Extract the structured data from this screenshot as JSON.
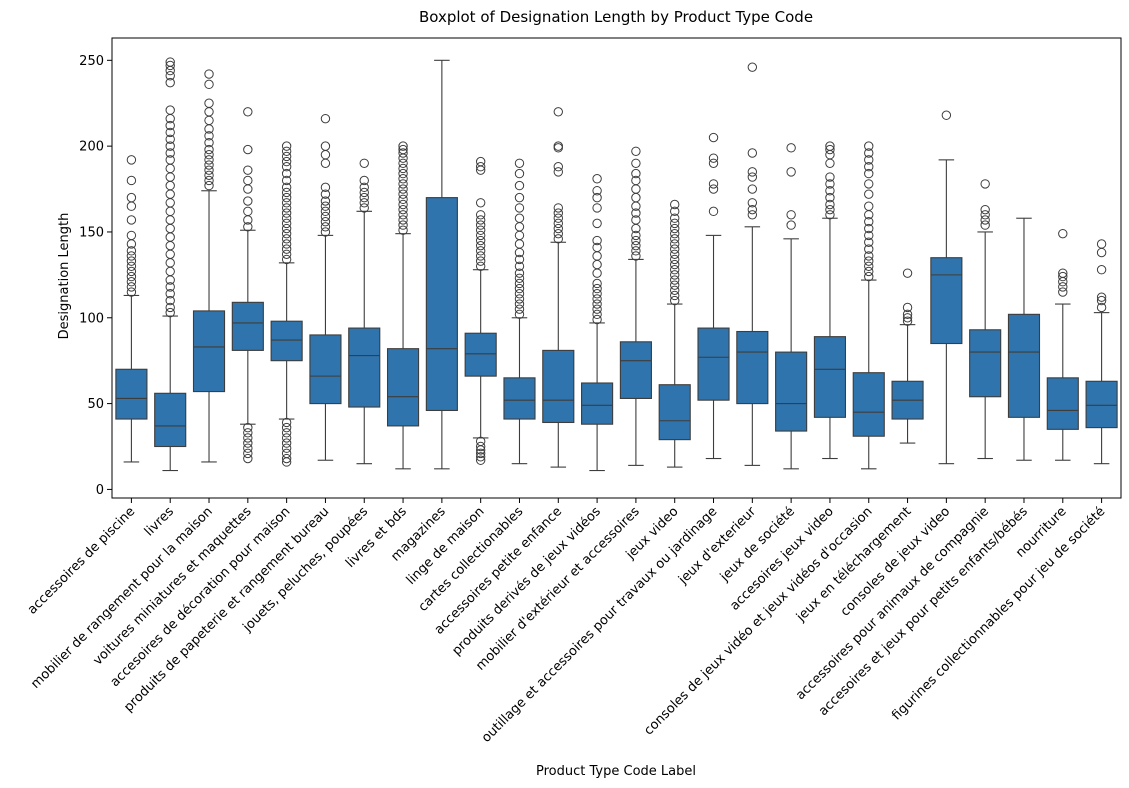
{
  "chart_data": {
    "type": "boxplot",
    "title": "Boxplot of Designation Length by Product Type Code",
    "xlabel": "Product Type Code Label",
    "ylabel": "Designation Length",
    "ylim": [
      -5,
      263
    ],
    "yticks": [
      0,
      50,
      100,
      150,
      200,
      250
    ],
    "grid": false,
    "box_color": "#2f74ad",
    "line_color": "#3d3d3d",
    "categories": [
      "accessoires de piscine",
      "livres",
      "mobilier de rangement pour la maison",
      "voitures miniatures et maquettes",
      "accesoires de décoration pour maison",
      "produits de papeterie et rangement bureau",
      "jouets, peluches, poupées",
      "livres et bds",
      "magazines",
      "linge de maison",
      "cartes collectionables",
      "accessoires petite enfance",
      "produits derivés de jeux vidéos",
      "mobilier d'extérieur et accessoires",
      "jeux video",
      "outillage et accessoires pour travaux ou jardinage",
      "jeux d'exterieur",
      "jeux de société",
      "accesoires jeux video",
      "consoles de jeux vidéo et jeux vidéos d'occasion",
      "jeux en téléchargement",
      "consoles de jeux video",
      "accessoires pour animaux de compagnie",
      "accesoires et jeux pour petits enfants/bébés",
      "nourriture",
      "figurines collectionnables pour jeu de société"
    ],
    "boxes": [
      {
        "whislo": 16,
        "q1": 41,
        "med": 53,
        "q3": 70,
        "whishi": 113,
        "fliers_high": [
          115,
          118,
          121,
          124,
          127,
          130,
          133,
          136,
          139,
          143,
          148,
          157,
          165,
          170,
          180,
          192
        ],
        "fliers_low": []
      },
      {
        "whislo": 11,
        "q1": 25,
        "med": 37,
        "q3": 56,
        "whishi": 101,
        "fliers_high": [
          103,
          106,
          110,
          114,
          118,
          122,
          127,
          132,
          137,
          142,
          147,
          152,
          157,
          162,
          167,
          172,
          177,
          182,
          187,
          192,
          196,
          200,
          204,
          208,
          212,
          216,
          221,
          237,
          241,
          244,
          247,
          249
        ],
        "fliers_low": []
      },
      {
        "whislo": 16,
        "q1": 57,
        "med": 83,
        "q3": 104,
        "whishi": 174,
        "fliers_high": [
          177,
          180,
          183,
          186,
          189,
          192,
          195,
          198,
          202,
          206,
          210,
          215,
          220,
          225,
          236,
          242
        ],
        "fliers_low": []
      },
      {
        "whislo": 38,
        "q1": 81,
        "med": 97,
        "q3": 109,
        "whishi": 151,
        "fliers_high": [
          153,
          157,
          162,
          168,
          175,
          180,
          186,
          198,
          220
        ],
        "fliers_low": [
          36,
          33,
          30,
          27,
          24,
          21,
          18
        ]
      },
      {
        "whislo": 41,
        "q1": 75,
        "med": 87,
        "q3": 98,
        "whishi": 132,
        "fliers_high": [
          134,
          137,
          140,
          143,
          146,
          149,
          152,
          155,
          158,
          161,
          164,
          167,
          170,
          173,
          176,
          180,
          184,
          188,
          191,
          194,
          197,
          200
        ],
        "fliers_low": [
          39,
          36,
          33,
          30,
          27,
          24,
          21,
          18,
          16
        ]
      },
      {
        "whislo": 17,
        "q1": 50,
        "med": 66,
        "q3": 90,
        "whishi": 148,
        "fliers_high": [
          150,
          153,
          156,
          159,
          162,
          165,
          168,
          172,
          176,
          190,
          195,
          200,
          216
        ],
        "fliers_low": []
      },
      {
        "whislo": 15,
        "q1": 48,
        "med": 78,
        "q3": 94,
        "whishi": 162,
        "fliers_high": [
          164,
          167,
          170,
          173,
          176,
          180,
          190
        ],
        "fliers_low": []
      },
      {
        "whislo": 12,
        "q1": 37,
        "med": 54,
        "q3": 82,
        "whishi": 149,
        "fliers_high": [
          151,
          154,
          157,
          160,
          163,
          166,
          169,
          172,
          175,
          178,
          181,
          184,
          187,
          190,
          193,
          196,
          198,
          200
        ],
        "fliers_low": []
      },
      {
        "whislo": 12,
        "q1": 46,
        "med": 82,
        "q3": 170,
        "whishi": 250,
        "fliers_high": [],
        "fliers_low": []
      },
      {
        "whislo": 30,
        "q1": 66,
        "med": 79,
        "q3": 91,
        "whishi": 128,
        "fliers_high": [
          130,
          133,
          136,
          139,
          142,
          145,
          148,
          151,
          154,
          157,
          160,
          167,
          186,
          188,
          191
        ],
        "fliers_low": [
          28,
          25,
          23,
          21,
          19,
          17
        ]
      },
      {
        "whislo": 15,
        "q1": 41,
        "med": 52,
        "q3": 65,
        "whishi": 100,
        "fliers_high": [
          102,
          105,
          108,
          111,
          114,
          117,
          120,
          123,
          126,
          130,
          134,
          138,
          143,
          148,
          153,
          158,
          164,
          170,
          177,
          184,
          190
        ],
        "fliers_low": []
      },
      {
        "whislo": 13,
        "q1": 39,
        "med": 52,
        "q3": 81,
        "whishi": 144,
        "fliers_high": [
          146,
          149,
          152,
          155,
          158,
          161,
          164,
          185,
          188,
          199,
          200,
          220
        ],
        "fliers_low": []
      },
      {
        "whislo": 11,
        "q1": 38,
        "med": 49,
        "q3": 62,
        "whishi": 97,
        "fliers_high": [
          99,
          102,
          105,
          108,
          111,
          114,
          117,
          120,
          126,
          131,
          136,
          141,
          145,
          155,
          164,
          170,
          174,
          181
        ],
        "fliers_low": []
      },
      {
        "whislo": 14,
        "q1": 53,
        "med": 75,
        "q3": 86,
        "whishi": 134,
        "fliers_high": [
          136,
          139,
          142,
          145,
          148,
          152,
          157,
          161,
          165,
          170,
          175,
          180,
          184,
          190,
          197
        ],
        "fliers_low": []
      },
      {
        "whislo": 13,
        "q1": 29,
        "med": 40,
        "q3": 61,
        "whishi": 108,
        "fliers_high": [
          110,
          113,
          116,
          119,
          122,
          125,
          128,
          131,
          134,
          137,
          140,
          143,
          146,
          149,
          152,
          155,
          158,
          162,
          166
        ],
        "fliers_low": []
      },
      {
        "whislo": 18,
        "q1": 52,
        "med": 77,
        "q3": 94,
        "whishi": 148,
        "fliers_high": [
          162,
          175,
          178,
          190,
          193,
          205
        ],
        "fliers_low": []
      },
      {
        "whislo": 14,
        "q1": 50,
        "med": 80,
        "q3": 92,
        "whishi": 153,
        "fliers_high": [
          160,
          163,
          167,
          175,
          182,
          185,
          196,
          246
        ],
        "fliers_low": []
      },
      {
        "whislo": 12,
        "q1": 34,
        "med": 50,
        "q3": 80,
        "whishi": 146,
        "fliers_high": [
          154,
          160,
          185,
          199
        ],
        "fliers_low": []
      },
      {
        "whislo": 18,
        "q1": 42,
        "med": 70,
        "q3": 89,
        "whishi": 158,
        "fliers_high": [
          160,
          163,
          166,
          170,
          174,
          178,
          182,
          190,
          195,
          198,
          200
        ],
        "fliers_low": []
      },
      {
        "whislo": 12,
        "q1": 31,
        "med": 45,
        "q3": 68,
        "whishi": 122,
        "fliers_high": [
          124,
          127,
          130,
          133,
          136,
          140,
          144,
          148,
          152,
          156,
          160,
          165,
          172,
          178,
          184,
          188,
          192,
          196,
          200
        ],
        "fliers_low": []
      },
      {
        "whislo": 27,
        "q1": 41,
        "med": 52,
        "q3": 63,
        "whishi": 96,
        "fliers_high": [
          98,
          100,
          102,
          106,
          126
        ],
        "fliers_low": []
      },
      {
        "whislo": 15,
        "q1": 85,
        "med": 125,
        "q3": 135,
        "whishi": 192,
        "fliers_high": [
          218
        ],
        "fliers_low": []
      },
      {
        "whislo": 18,
        "q1": 54,
        "med": 80,
        "q3": 93,
        "whishi": 150,
        "fliers_high": [
          154,
          157,
          160,
          163,
          178
        ],
        "fliers_low": []
      },
      {
        "whislo": 17,
        "q1": 42,
        "med": 80,
        "q3": 102,
        "whishi": 158,
        "fliers_high": [],
        "fliers_low": []
      },
      {
        "whislo": 17,
        "q1": 35,
        "med": 46,
        "q3": 65,
        "whishi": 108,
        "fliers_high": [
          115,
          118,
          121,
          124,
          126,
          149
        ],
        "fliers_low": []
      },
      {
        "whislo": 15,
        "q1": 36,
        "med": 49,
        "q3": 63,
        "whishi": 103,
        "fliers_high": [
          106,
          110,
          112,
          128,
          138,
          143
        ],
        "fliers_low": []
      }
    ]
  }
}
